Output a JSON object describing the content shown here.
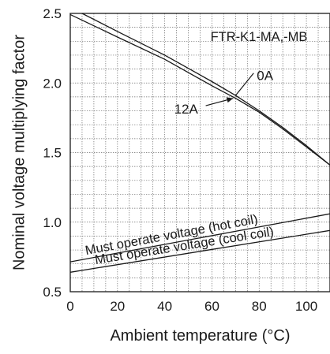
{
  "chart_data": {
    "type": "line",
    "title": "",
    "xlabel": "Ambient temperature (°C)",
    "ylabel": "Nominal voltage multiplying factor",
    "xlim": [
      0,
      110
    ],
    "ylim": [
      0.5,
      2.5
    ],
    "x_ticks": [
      0,
      20,
      40,
      60,
      80,
      100
    ],
    "y_ticks": [
      0.5,
      1.0,
      1.5,
      2.0,
      2.5
    ],
    "x_tick_labels": [
      "0",
      "20",
      "40",
      "60",
      "80",
      "100"
    ],
    "y_tick_labels": [
      "0.5",
      "1.0",
      "1.5",
      "2.0",
      "2.5"
    ],
    "grid": "dotted, every 5 °C and 0.1",
    "legend": "none",
    "series": [
      {
        "id": "0a",
        "x": [
          5,
          20,
          40,
          60,
          70,
          80,
          90,
          100,
          110
        ],
        "y": [
          2.5,
          2.37,
          2.2,
          2.01,
          1.91,
          1.8,
          1.68,
          1.55,
          1.41
        ]
      },
      {
        "id": "12a",
        "x": [
          -1,
          20,
          40,
          60,
          70,
          80,
          90,
          100,
          110
        ],
        "y": [
          2.5,
          2.33,
          2.17,
          1.98,
          1.89,
          1.79,
          1.67,
          1.54,
          1.41
        ]
      },
      {
        "id": "hot",
        "name": "Must operate voltage (hot coil)",
        "x": [
          0,
          110
        ],
        "y": [
          0.715,
          1.06
        ]
      },
      {
        "id": "cool",
        "name": "Must operate voltage (cool coil)",
        "x": [
          0,
          110
        ],
        "y": [
          0.64,
          0.94
        ]
      }
    ],
    "annotations": [
      {
        "text": "FTR-K1-MA,-MB"
      },
      {
        "text": "0A",
        "series": "0a"
      },
      {
        "text": "12A",
        "series": "12a"
      }
    ]
  }
}
